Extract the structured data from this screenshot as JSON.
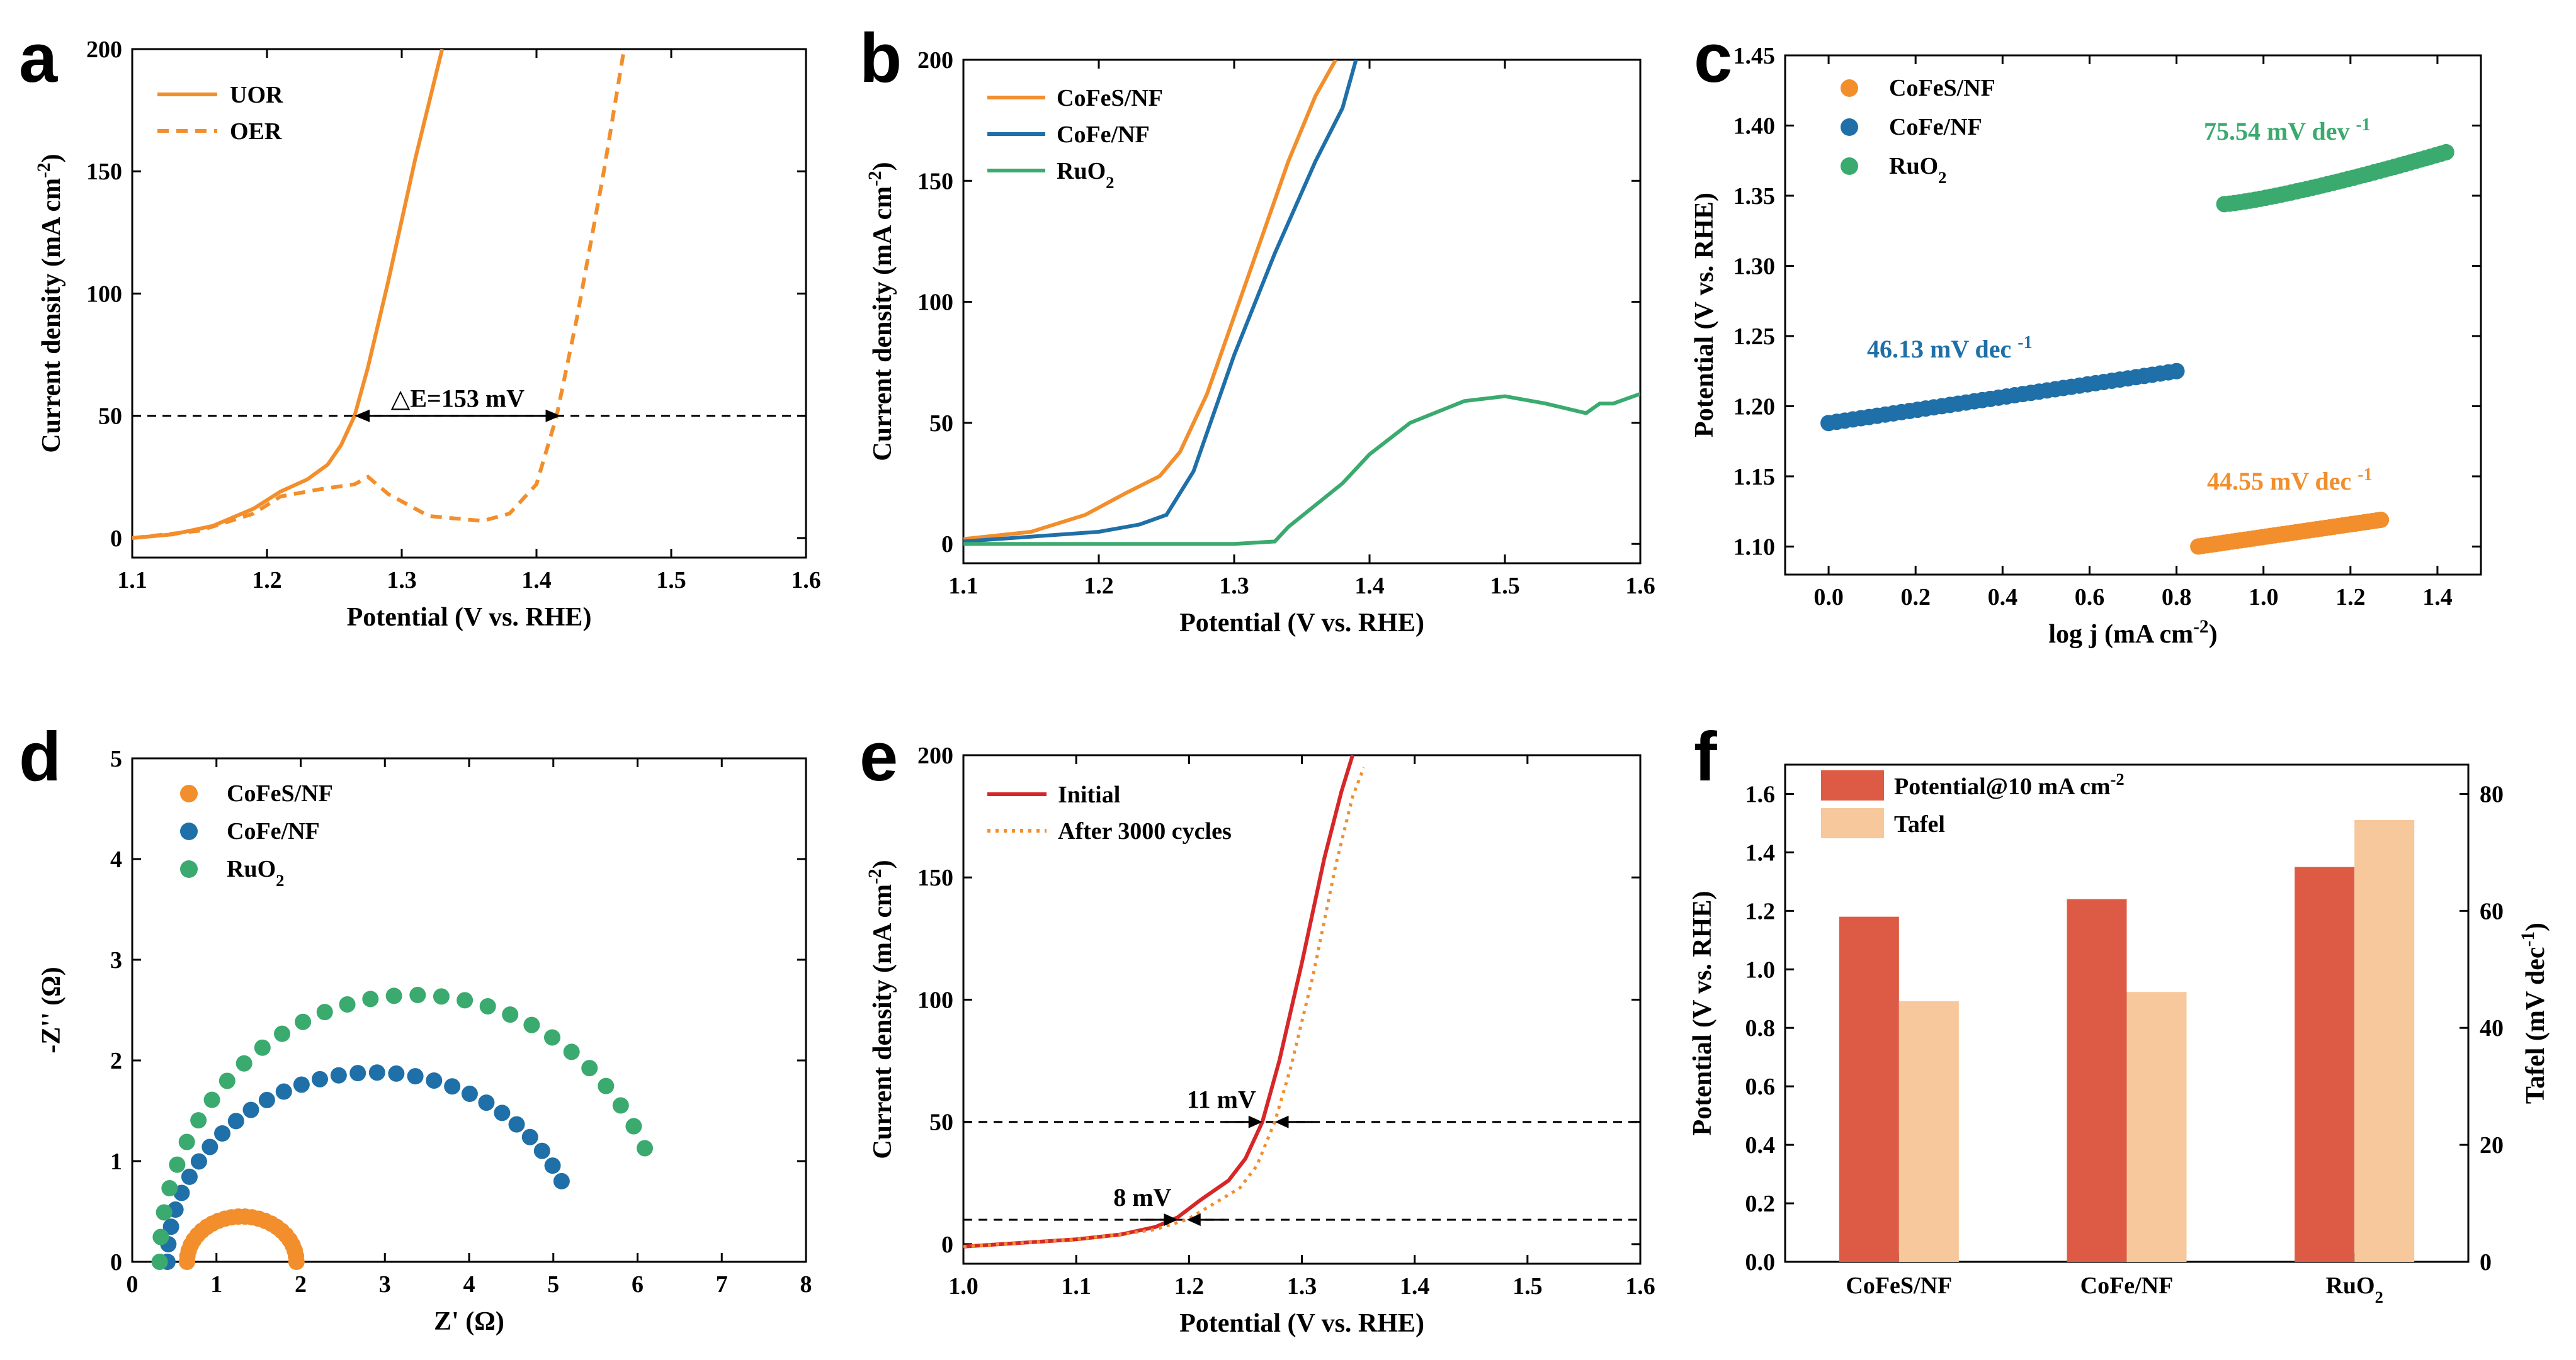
{
  "chart_data": [
    {
      "panel": "a",
      "type": "line",
      "xlabel": "Potential (V vs. RHE)",
      "ylabel": "Current density (mA cm⁻²)",
      "xlim": [
        1.1,
        1.6
      ],
      "ylim": [
        -8,
        200
      ],
      "xticks": [
        "1.1",
        "1.2",
        "1.3",
        "1.4",
        "1.5",
        "1.6"
      ],
      "yticks": [
        "0",
        "50",
        "100",
        "150",
        "200"
      ],
      "series": [
        {
          "name": "UOR",
          "style": "solid",
          "color": "#f28e2b",
          "x": [
            1.1,
            1.13,
            1.16,
            1.19,
            1.21,
            1.23,
            1.245,
            1.255,
            1.265,
            1.275,
            1.29,
            1.31,
            1.33
          ],
          "y": [
            0,
            1.5,
            5,
            12,
            19,
            24,
            30,
            38,
            50,
            70,
            105,
            155,
            200
          ]
        },
        {
          "name": "OER",
          "style": "dashed",
          "color": "#f28e2b",
          "x": [
            1.1,
            1.15,
            1.19,
            1.21,
            1.24,
            1.265,
            1.275,
            1.29,
            1.32,
            1.36,
            1.38,
            1.4,
            1.415,
            1.43,
            1.45,
            1.465
          ],
          "y": [
            0,
            3,
            10,
            17,
            20,
            22,
            25,
            18,
            9,
            7,
            10,
            22,
            50,
            90,
            150,
            200
          ]
        }
      ],
      "reference_lines": [
        {
          "y": 50,
          "style": "dashed"
        }
      ],
      "annotations": [
        {
          "text": "△E=153 mV",
          "from_x": 1.265,
          "to_x": 1.418,
          "y": 50
        }
      ]
    },
    {
      "panel": "b",
      "type": "line",
      "xlabel": "Potential (V vs. RHE)",
      "ylabel": "Current density (mA cm⁻²)",
      "xlim": [
        1.1,
        1.6
      ],
      "ylim": [
        -8,
        200
      ],
      "xticks": [
        "1.1",
        "1.2",
        "1.3",
        "1.4",
        "1.5",
        "1.6"
      ],
      "yticks": [
        "0",
        "50",
        "100",
        "150",
        "200"
      ],
      "series": [
        {
          "name": "CoFeS/NF",
          "color": "#f28e2b",
          "x": [
            1.1,
            1.15,
            1.19,
            1.22,
            1.245,
            1.26,
            1.28,
            1.31,
            1.34,
            1.36,
            1.375
          ],
          "y": [
            2,
            5,
            12,
            21,
            28,
            38,
            62,
            110,
            158,
            185,
            200
          ]
        },
        {
          "name": "CoFe/NF",
          "color": "#1f6fa8",
          "x": [
            1.1,
            1.15,
            1.2,
            1.23,
            1.25,
            1.27,
            1.3,
            1.33,
            1.36,
            1.38,
            1.39
          ],
          "y": [
            1,
            3,
            5,
            8,
            12,
            30,
            78,
            120,
            158,
            180,
            200
          ]
        },
        {
          "name": "RuO₂",
          "color": "#3aaa6e",
          "x": [
            1.1,
            1.2,
            1.3,
            1.33,
            1.34,
            1.38,
            1.4,
            1.43,
            1.47,
            1.5,
            1.53,
            1.56,
            1.57,
            1.58,
            1.6
          ],
          "y": [
            0,
            0,
            0,
            1,
            7,
            25,
            37,
            50,
            59,
            61,
            58,
            54,
            58,
            58,
            62
          ]
        }
      ]
    },
    {
      "panel": "c",
      "type": "scatter",
      "xlabel": "log j (mA cm⁻²)",
      "ylabel": "Potential (V vs. RHE)",
      "xlim": [
        -0.1,
        1.5
      ],
      "ylim": [
        1.08,
        1.45
      ],
      "xticks": [
        "0.0",
        "0.2",
        "0.4",
        "0.6",
        "0.8",
        "1.0",
        "1.2",
        "1.4"
      ],
      "yticks": [
        "1.10",
        "1.15",
        "1.20",
        "1.25",
        "1.30",
        "1.35",
        "1.40",
        "1.45"
      ],
      "series": [
        {
          "name": "CoFeS/NF",
          "color": "#f28e2b",
          "x_range": [
            0.85,
            1.27
          ],
          "y_range": [
            1.1,
            1.119
          ],
          "slope_label": "44.55 mV dec"
        },
        {
          "name": "CoFe/NF",
          "color": "#1f6fa8",
          "x_range": [
            0.0,
            0.8
          ],
          "y_range": [
            1.188,
            1.225
          ],
          "slope_label": "46.13 mV dec"
        },
        {
          "name": "RuO₂",
          "color": "#3aaa6e",
          "x_range": [
            0.91,
            1.42
          ],
          "y_range": [
            1.344,
            1.381
          ],
          "slope_label": "75.54 mV dev"
        }
      ],
      "superscript": "-1"
    },
    {
      "panel": "d",
      "type": "scatter",
      "xlabel": "Z' (Ω)",
      "ylabel": "-Z'' (Ω)",
      "xlim": [
        0,
        8
      ],
      "ylim": [
        0,
        5
      ],
      "xticks": [
        "0",
        "1",
        "2",
        "3",
        "4",
        "5",
        "6",
        "7",
        "8"
      ],
      "yticks": [
        "0",
        "1",
        "2",
        "3",
        "4",
        "5"
      ],
      "series": [
        {
          "name": "CoFeS/NF",
          "color": "#f28e2b",
          "x_start": 0.65,
          "x_end": 1.95,
          "peak": 0.45
        },
        {
          "name": "CoFe/NF",
          "color": "#1f6fa8",
          "x_start": 0.6,
          "x_end": 5.15,
          "peak": 1.88
        },
        {
          "name": "RuO₂",
          "color": "#3aaa6e",
          "x_start": 0.55,
          "x_end": 6.15,
          "peak": 2.65
        }
      ]
    },
    {
      "panel": "e",
      "type": "line",
      "xlabel": "Potential (V vs. RHE)",
      "ylabel": "Current density (mA cm⁻²)",
      "xlim": [
        1.0,
        1.6
      ],
      "ylim": [
        -8,
        200
      ],
      "xticks": [
        "1.0",
        "1.1",
        "1.2",
        "1.3",
        "1.4",
        "1.5",
        "1.6"
      ],
      "yticks": [
        "0",
        "50",
        "100",
        "150",
        "200"
      ],
      "series": [
        {
          "name": "Initial",
          "style": "solid",
          "color": "#d62728",
          "x": [
            1.0,
            1.05,
            1.1,
            1.14,
            1.17,
            1.19,
            1.21,
            1.235,
            1.25,
            1.265,
            1.28,
            1.3,
            1.32,
            1.335,
            1.345
          ],
          "y": [
            -1,
            0.5,
            2,
            4,
            7,
            11,
            18,
            26,
            35,
            50,
            75,
            115,
            158,
            185,
            200
          ]
        },
        {
          "name": "After 3000 cycles",
          "style": "dotted",
          "color": "#f28e2b",
          "x": [
            1.0,
            1.05,
            1.1,
            1.14,
            1.17,
            1.198,
            1.22,
            1.245,
            1.26,
            1.276,
            1.29,
            1.31,
            1.33,
            1.345,
            1.355
          ],
          "y": [
            -1,
            0.5,
            2,
            4,
            6,
            10,
            16,
            23,
            32,
            50,
            72,
            110,
            155,
            183,
            195
          ]
        }
      ],
      "reference_lines": [
        {
          "y": 50,
          "style": "dashed"
        },
        {
          "y": 10,
          "style": "dashed"
        }
      ],
      "annotations": [
        {
          "text": "11 mV",
          "x1": 1.265,
          "x2": 1.276,
          "y": 50
        },
        {
          "text": "8 mV",
          "x1": 1.19,
          "x2": 1.198,
          "y": 10
        }
      ]
    },
    {
      "panel": "f",
      "type": "bar",
      "categories": [
        "CoFeS/NF",
        "CoFe/NF",
        "RuO₂"
      ],
      "ylabel": "Potential (V vs. RHE)",
      "y2label": "Tafel (mV dec⁻¹)",
      "ylim": [
        0,
        1.7
      ],
      "y2lim": [
        0,
        85
      ],
      "yticks": [
        "0.0",
        "0.2",
        "0.4",
        "0.6",
        "0.8",
        "1.0",
        "1.2",
        "1.4",
        "1.6"
      ],
      "y2ticks": [
        "0",
        "20",
        "40",
        "60",
        "80"
      ],
      "series": [
        {
          "name": "Potential@10 mA cm⁻²",
          "axis": "left",
          "color": "#dd5b45",
          "values": [
            1.18,
            1.24,
            1.35
          ]
        },
        {
          "name": "Tafel",
          "axis": "right",
          "color": "#f7c89b",
          "values": [
            44.55,
            46.13,
            75.54
          ]
        }
      ]
    }
  ]
}
